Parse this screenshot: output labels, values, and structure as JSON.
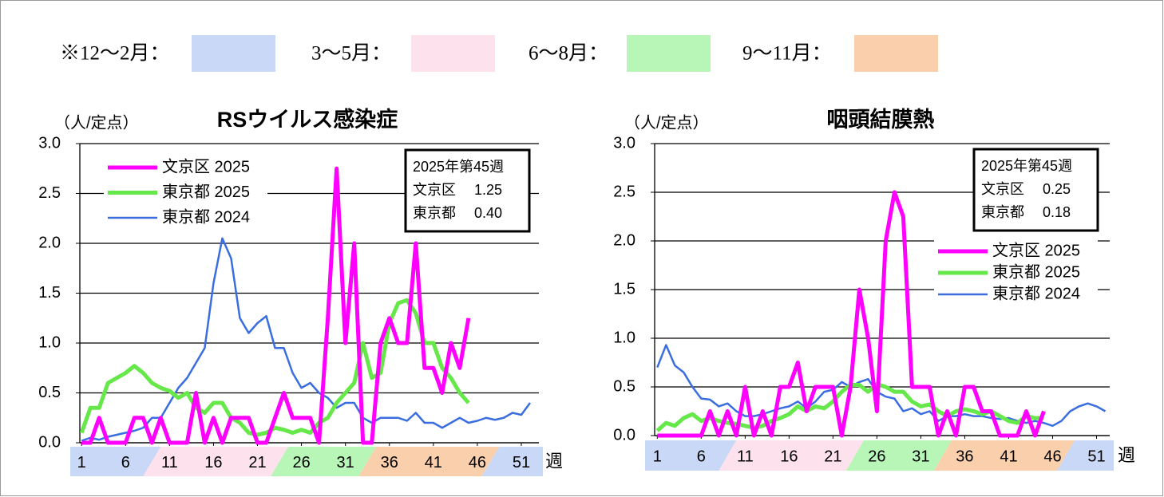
{
  "season_legend": [
    {
      "label": "※12～2月：",
      "color": "#c8d8f6"
    },
    {
      "label": "3～5月：",
      "color": "#fde2ee"
    },
    {
      "label": "6～8月：",
      "color": "#b8f6b8"
    },
    {
      "label": "9～11月：",
      "color": "#f9cfac"
    }
  ],
  "chart_data": [
    {
      "type": "line",
      "title": "RSウイルス感染症",
      "y_label": "（人/定点）",
      "x_label": "週",
      "x": [
        1,
        2,
        3,
        4,
        5,
        6,
        7,
        8,
        9,
        10,
        11,
        12,
        13,
        14,
        15,
        16,
        17,
        18,
        19,
        20,
        21,
        22,
        23,
        24,
        25,
        26,
        27,
        28,
        29,
        30,
        31,
        32,
        33,
        34,
        35,
        36,
        37,
        38,
        39,
        40,
        41,
        42,
        43,
        44,
        45,
        46,
        47,
        48,
        49,
        50,
        51,
        52
      ],
      "xlim": [
        0.8,
        53
      ],
      "xticks": [
        1,
        6,
        11,
        16,
        21,
        26,
        31,
        36,
        41,
        46,
        51
      ],
      "ylim": [
        0,
        3
      ],
      "yticks": [
        {
          "value": 0,
          "label": "0.0"
        },
        {
          "value": 0.5,
          "label": "0.5"
        },
        {
          "value": 1,
          "label": "1.0"
        },
        {
          "value": 1.5,
          "label": "1.5"
        },
        {
          "value": 2,
          "label": "2.0"
        },
        {
          "value": 2.5,
          "label": "2.5"
        },
        {
          "value": 3,
          "label": "3.0"
        }
      ],
      "grid": true,
      "legend_position": "top-left",
      "series": [
        {
          "name": "文京区 2025",
          "color": "#ff00ff",
          "values": [
            0,
            0,
            0.25,
            0,
            0,
            0,
            0.25,
            0.25,
            0,
            0.25,
            0,
            0,
            0,
            0.5,
            0,
            0.25,
            0,
            0.25,
            0.25,
            0.25,
            0,
            0,
            0.25,
            0.5,
            0.25,
            0.25,
            0.25,
            0,
            1.25,
            2.75,
            1,
            2,
            0,
            0,
            1,
            1.25,
            1,
            1,
            2,
            0.75,
            0.75,
            0.5,
            1,
            0.75,
            1.25,
            null,
            null,
            null,
            null,
            null,
            null,
            null
          ]
        },
        {
          "name": "東京都 2025",
          "color": "#66e84a",
          "values": [
            0.1,
            0.35,
            0.35,
            0.6,
            0.65,
            0.7,
            0.77,
            0.7,
            0.6,
            0.55,
            0.52,
            0.45,
            0.5,
            0.35,
            0.3,
            0.4,
            0.4,
            0.25,
            0.2,
            0.1,
            0.08,
            0.1,
            0.15,
            0.13,
            0.1,
            0.13,
            0.1,
            0.2,
            0.25,
            0.4,
            0.5,
            0.6,
            1,
            0.65,
            0.7,
            1.2,
            1.4,
            1.43,
            1.3,
            1,
            1,
            0.75,
            0.65,
            0.5,
            0.4,
            null,
            null,
            null,
            null,
            null,
            null,
            null
          ]
        },
        {
          "name": "東京都 2024",
          "color": "#3a6ee0",
          "values": [
            0.02,
            0.05,
            0.03,
            0.06,
            0.08,
            0.1,
            0.12,
            0.15,
            0.25,
            0.25,
            0.4,
            0.55,
            0.65,
            0.8,
            0.95,
            1.6,
            2.05,
            1.85,
            1.25,
            1.1,
            1.2,
            1.27,
            0.95,
            0.95,
            0.7,
            0.55,
            0.6,
            0.5,
            0.45,
            0.35,
            0.4,
            0.4,
            0.25,
            0.2,
            0.25,
            0.25,
            0.25,
            0.22,
            0.3,
            0.2,
            0.2,
            0.15,
            0.2,
            0.25,
            0.2,
            0.22,
            0.25,
            0.23,
            0.25,
            0.3,
            0.28,
            0.4
          ]
        }
      ],
      "info_box": {
        "title": "2025年第45週",
        "rows": [
          {
            "label": "文京区",
            "value": "1.25"
          },
          {
            "label": "東京都",
            "value": "0.40"
          }
        ]
      }
    },
    {
      "type": "line",
      "title": "咽頭結膜熱",
      "y_label": "（人/定点）",
      "x_label": "週",
      "x": [
        1,
        2,
        3,
        4,
        5,
        6,
        7,
        8,
        9,
        10,
        11,
        12,
        13,
        14,
        15,
        16,
        17,
        18,
        19,
        20,
        21,
        22,
        23,
        24,
        25,
        26,
        27,
        28,
        29,
        30,
        31,
        32,
        33,
        34,
        35,
        36,
        37,
        38,
        39,
        40,
        41,
        42,
        43,
        44,
        45,
        46,
        47,
        48,
        49,
        50,
        51,
        52
      ],
      "xlim": [
        0.7,
        52.5
      ],
      "xticks": [
        1,
        6,
        11,
        16,
        21,
        26,
        31,
        36,
        41,
        46,
        51
      ],
      "ylim": [
        0,
        3
      ],
      "yticks": [
        {
          "value": 0,
          "label": "0.0"
        },
        {
          "value": 0.5,
          "label": "0.5"
        },
        {
          "value": 1,
          "label": "1.0"
        },
        {
          "value": 1.5,
          "label": "1.5"
        },
        {
          "value": 2,
          "label": "2.0"
        },
        {
          "value": 2.5,
          "label": "2.5"
        },
        {
          "value": 3,
          "label": "3.0"
        }
      ],
      "grid": true,
      "legend_position": "right",
      "series": [
        {
          "name": "文京区 2025",
          "color": "#ff00ff",
          "values": [
            0,
            0,
            0,
            0,
            0,
            0,
            0.25,
            0,
            0.25,
            0,
            0.5,
            0,
            0.25,
            0,
            0.5,
            0.5,
            0.75,
            0.25,
            0.5,
            0.5,
            0.5,
            0,
            0.5,
            1.5,
            1,
            0.25,
            2,
            2.5,
            2.25,
            0.5,
            0.5,
            0.5,
            0,
            0.25,
            0,
            0.5,
            0.5,
            0.25,
            0.25,
            0,
            0,
            0,
            0.25,
            0,
            0.25,
            null,
            null,
            null,
            null,
            null,
            null,
            null
          ]
        },
        {
          "name": "東京都 2025",
          "color": "#66e84a",
          "values": [
            0.05,
            0.13,
            0.1,
            0.18,
            0.22,
            0.15,
            0.18,
            0.15,
            0.13,
            0.12,
            0.1,
            0.08,
            0.1,
            0.15,
            0.18,
            0.22,
            0.3,
            0.25,
            0.3,
            0.28,
            0.35,
            0.45,
            0.52,
            0.52,
            0.45,
            0.53,
            0.5,
            0.45,
            0.45,
            0.35,
            0.3,
            0.32,
            0.25,
            0.2,
            0.25,
            0.27,
            0.25,
            0.22,
            0.25,
            0.2,
            0.15,
            0.13,
            0.2,
            0.18,
            0.18,
            null,
            null,
            null,
            null,
            null,
            null,
            null
          ]
        },
        {
          "name": "東京都 2024",
          "color": "#3a6ee0",
          "values": [
            0.7,
            0.93,
            0.72,
            0.65,
            0.5,
            0.38,
            0.37,
            0.3,
            0.33,
            0.25,
            0.2,
            0.2,
            0.22,
            0.25,
            0.28,
            0.3,
            0.35,
            0.28,
            0.35,
            0.45,
            0.47,
            0.55,
            0.5,
            0.55,
            0.58,
            0.45,
            0.4,
            0.38,
            0.25,
            0.28,
            0.22,
            0.25,
            0.15,
            0.2,
            0.2,
            0.22,
            0.2,
            0.2,
            0.18,
            0.17,
            0.18,
            0.15,
            0.13,
            0.15,
            0.13,
            0.1,
            0.15,
            0.25,
            0.3,
            0.33,
            0.3,
            0.25
          ]
        }
      ],
      "info_box": {
        "title": "2025年第45週",
        "rows": [
          {
            "label": "文京区",
            "value": "0.25"
          },
          {
            "label": "東京都",
            "value": "0.18"
          }
        ]
      }
    }
  ]
}
